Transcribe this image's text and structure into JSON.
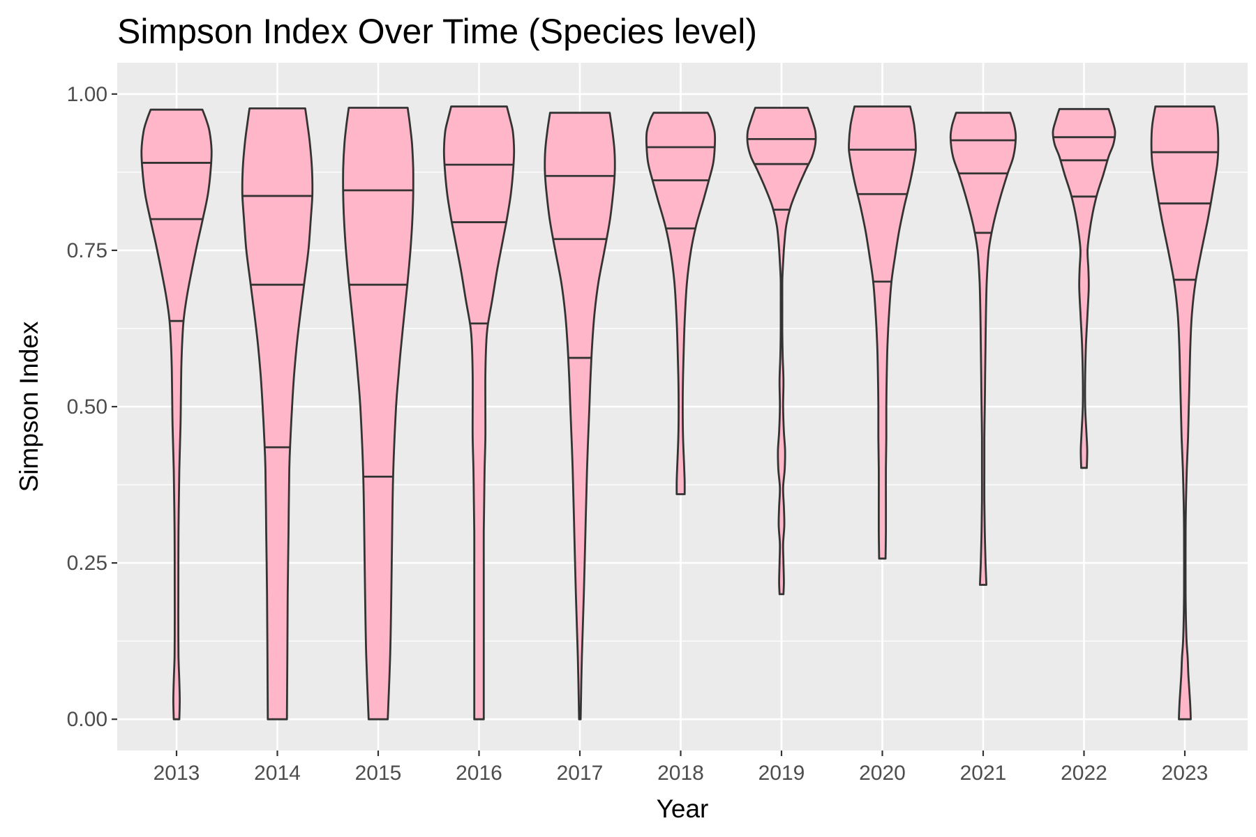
{
  "chart_data": {
    "type": "violin",
    "title": "Simpson Index Over Time (Species level)",
    "xlabel": "Year",
    "ylabel": "Simpson Index",
    "categories": [
      "2013",
      "2014",
      "2015",
      "2016",
      "2017",
      "2018",
      "2019",
      "2020",
      "2021",
      "2022",
      "2023"
    ],
    "yticks": [
      0.0,
      0.25,
      0.5,
      0.75,
      1.0
    ],
    "ytick_labels": [
      "0.00",
      "0.25",
      "0.50",
      "0.75",
      "1.00"
    ],
    "ylim": [
      -0.05,
      1.05
    ],
    "grid": true,
    "fill_color": "#ffb6c8",
    "line_color": "#333333",
    "panel_color": "#ebebeb",
    "grid_color": "#ffffff",
    "series": [
      {
        "category": "2013",
        "min": 0.0,
        "max": 0.975,
        "quantiles": [
          0.637,
          0.8,
          0.89
        ],
        "profile": [
          [
            0.0,
            0.07
          ],
          [
            0.03,
            0.08
          ],
          [
            0.06,
            0.07
          ],
          [
            0.1,
            0.05
          ],
          [
            0.15,
            0.045
          ],
          [
            0.2,
            0.045
          ],
          [
            0.3,
            0.05
          ],
          [
            0.4,
            0.07
          ],
          [
            0.47,
            0.1
          ],
          [
            0.52,
            0.11
          ],
          [
            0.56,
            0.12
          ],
          [
            0.6,
            0.14
          ],
          [
            0.64,
            0.18
          ],
          [
            0.68,
            0.27
          ],
          [
            0.72,
            0.39
          ],
          [
            0.76,
            0.52
          ],
          [
            0.8,
            0.66
          ],
          [
            0.84,
            0.79
          ],
          [
            0.88,
            0.86
          ],
          [
            0.91,
            0.88
          ],
          [
            0.94,
            0.83
          ],
          [
            0.96,
            0.74
          ],
          [
            0.975,
            0.65
          ]
        ]
      },
      {
        "category": "2014",
        "min": 0.0,
        "max": 0.977,
        "quantiles": [
          0.435,
          0.695,
          0.837
        ],
        "profile": [
          [
            0.0,
            0.24
          ],
          [
            0.1,
            0.25
          ],
          [
            0.2,
            0.26
          ],
          [
            0.3,
            0.28
          ],
          [
            0.4,
            0.3
          ],
          [
            0.45,
            0.33
          ],
          [
            0.5,
            0.37
          ],
          [
            0.55,
            0.42
          ],
          [
            0.6,
            0.49
          ],
          [
            0.65,
            0.58
          ],
          [
            0.7,
            0.68
          ],
          [
            0.75,
            0.78
          ],
          [
            0.8,
            0.84
          ],
          [
            0.84,
            0.88
          ],
          [
            0.88,
            0.87
          ],
          [
            0.92,
            0.82
          ],
          [
            0.95,
            0.76
          ],
          [
            0.977,
            0.7
          ]
        ]
      },
      {
        "category": "2015",
        "min": 0.0,
        "max": 0.978,
        "quantiles": [
          0.388,
          0.695,
          0.846
        ],
        "profile": [
          [
            0.0,
            0.24
          ],
          [
            0.1,
            0.3
          ],
          [
            0.2,
            0.33
          ],
          [
            0.3,
            0.35
          ],
          [
            0.4,
            0.38
          ],
          [
            0.5,
            0.45
          ],
          [
            0.55,
            0.51
          ],
          [
            0.6,
            0.58
          ],
          [
            0.65,
            0.66
          ],
          [
            0.7,
            0.74
          ],
          [
            0.75,
            0.81
          ],
          [
            0.8,
            0.86
          ],
          [
            0.84,
            0.88
          ],
          [
            0.88,
            0.88
          ],
          [
            0.92,
            0.85
          ],
          [
            0.95,
            0.8
          ],
          [
            0.978,
            0.74
          ]
        ]
      },
      {
        "category": "2016",
        "min": 0.0,
        "max": 0.98,
        "quantiles": [
          0.633,
          0.795,
          0.887
        ],
        "profile": [
          [
            0.0,
            0.12
          ],
          [
            0.05,
            0.12
          ],
          [
            0.1,
            0.12
          ],
          [
            0.2,
            0.12
          ],
          [
            0.25,
            0.12
          ],
          [
            0.3,
            0.12
          ],
          [
            0.35,
            0.13
          ],
          [
            0.4,
            0.14
          ],
          [
            0.45,
            0.16
          ],
          [
            0.5,
            0.16
          ],
          [
            0.55,
            0.16
          ],
          [
            0.6,
            0.18
          ],
          [
            0.63,
            0.22
          ],
          [
            0.67,
            0.33
          ],
          [
            0.72,
            0.46
          ],
          [
            0.76,
            0.58
          ],
          [
            0.8,
            0.7
          ],
          [
            0.84,
            0.8
          ],
          [
            0.88,
            0.86
          ],
          [
            0.91,
            0.88
          ],
          [
            0.94,
            0.85
          ],
          [
            0.96,
            0.78
          ],
          [
            0.98,
            0.7
          ]
        ]
      },
      {
        "category": "2017",
        "min": 0.0,
        "max": 0.97,
        "quantiles": [
          0.578,
          0.768,
          0.869
        ],
        "profile": [
          [
            0.0,
            0.02
          ],
          [
            0.1,
            0.05
          ],
          [
            0.2,
            0.1
          ],
          [
            0.3,
            0.14
          ],
          [
            0.4,
            0.18
          ],
          [
            0.5,
            0.24
          ],
          [
            0.55,
            0.27
          ],
          [
            0.6,
            0.31
          ],
          [
            0.65,
            0.37
          ],
          [
            0.7,
            0.47
          ],
          [
            0.75,
            0.62
          ],
          [
            0.8,
            0.76
          ],
          [
            0.85,
            0.85
          ],
          [
            0.88,
            0.88
          ],
          [
            0.91,
            0.87
          ],
          [
            0.94,
            0.82
          ],
          [
            0.97,
            0.75
          ]
        ]
      },
      {
        "category": "2018",
        "min": 0.36,
        "max": 0.97,
        "quantiles": [
          0.785,
          0.862,
          0.915
        ],
        "profile": [
          [
            0.36,
            0.1
          ],
          [
            0.38,
            0.1
          ],
          [
            0.4,
            0.09
          ],
          [
            0.45,
            0.06
          ],
          [
            0.5,
            0.05
          ],
          [
            0.55,
            0.06
          ],
          [
            0.6,
            0.08
          ],
          [
            0.65,
            0.11
          ],
          [
            0.7,
            0.16
          ],
          [
            0.75,
            0.26
          ],
          [
            0.79,
            0.39
          ],
          [
            0.83,
            0.57
          ],
          [
            0.86,
            0.7
          ],
          [
            0.89,
            0.82
          ],
          [
            0.92,
            0.86
          ],
          [
            0.94,
            0.85
          ],
          [
            0.96,
            0.76
          ],
          [
            0.97,
            0.68
          ]
        ]
      },
      {
        "category": "2019",
        "min": 0.2,
        "max": 0.978,
        "quantiles": [
          0.815,
          0.888,
          0.928
        ],
        "profile": [
          [
            0.2,
            0.05
          ],
          [
            0.22,
            0.06
          ],
          [
            0.25,
            0.05
          ],
          [
            0.28,
            0.04
          ],
          [
            0.31,
            0.07
          ],
          [
            0.34,
            0.06
          ],
          [
            0.37,
            0.04
          ],
          [
            0.4,
            0.08
          ],
          [
            0.43,
            0.09
          ],
          [
            0.46,
            0.06
          ],
          [
            0.5,
            0.04
          ],
          [
            0.54,
            0.05
          ],
          [
            0.58,
            0.03
          ],
          [
            0.62,
            0.02
          ],
          [
            0.66,
            0.02
          ],
          [
            0.7,
            0.02
          ],
          [
            0.73,
            0.04
          ],
          [
            0.76,
            0.07
          ],
          [
            0.79,
            0.12
          ],
          [
            0.82,
            0.23
          ],
          [
            0.85,
            0.41
          ],
          [
            0.88,
            0.62
          ],
          [
            0.9,
            0.77
          ],
          [
            0.92,
            0.85
          ],
          [
            0.94,
            0.85
          ],
          [
            0.96,
            0.76
          ],
          [
            0.978,
            0.66
          ]
        ]
      },
      {
        "category": "2020",
        "min": 0.257,
        "max": 0.98,
        "quantiles": [
          0.7,
          0.84,
          0.911
        ],
        "profile": [
          [
            0.257,
            0.08
          ],
          [
            0.3,
            0.09
          ],
          [
            0.35,
            0.09
          ],
          [
            0.4,
            0.09
          ],
          [
            0.45,
            0.1
          ],
          [
            0.5,
            0.1
          ],
          [
            0.55,
            0.11
          ],
          [
            0.6,
            0.13
          ],
          [
            0.65,
            0.17
          ],
          [
            0.7,
            0.23
          ],
          [
            0.74,
            0.32
          ],
          [
            0.78,
            0.42
          ],
          [
            0.82,
            0.55
          ],
          [
            0.86,
            0.7
          ],
          [
            0.9,
            0.82
          ],
          [
            0.92,
            0.84
          ],
          [
            0.95,
            0.8
          ],
          [
            0.98,
            0.7
          ]
        ]
      },
      {
        "category": "2021",
        "min": 0.215,
        "max": 0.97,
        "quantiles": [
          0.778,
          0.873,
          0.926
        ],
        "profile": [
          [
            0.215,
            0.08
          ],
          [
            0.25,
            0.06
          ],
          [
            0.3,
            0.04
          ],
          [
            0.35,
            0.03
          ],
          [
            0.4,
            0.03
          ],
          [
            0.45,
            0.03
          ],
          [
            0.5,
            0.04
          ],
          [
            0.55,
            0.05
          ],
          [
            0.6,
            0.06
          ],
          [
            0.65,
            0.07
          ],
          [
            0.7,
            0.09
          ],
          [
            0.75,
            0.14
          ],
          [
            0.79,
            0.25
          ],
          [
            0.83,
            0.41
          ],
          [
            0.87,
            0.6
          ],
          [
            0.9,
            0.76
          ],
          [
            0.93,
            0.82
          ],
          [
            0.95,
            0.78
          ],
          [
            0.97,
            0.68
          ]
        ]
      },
      {
        "category": "2022",
        "min": 0.402,
        "max": 0.976,
        "quantiles": [
          0.836,
          0.894,
          0.931
        ],
        "profile": [
          [
            0.402,
            0.07
          ],
          [
            0.43,
            0.08
          ],
          [
            0.46,
            0.06
          ],
          [
            0.5,
            0.03
          ],
          [
            0.55,
            0.03
          ],
          [
            0.6,
            0.05
          ],
          [
            0.65,
            0.09
          ],
          [
            0.69,
            0.12
          ],
          [
            0.72,
            0.11
          ],
          [
            0.75,
            0.09
          ],
          [
            0.78,
            0.14
          ],
          [
            0.81,
            0.22
          ],
          [
            0.84,
            0.33
          ],
          [
            0.87,
            0.48
          ],
          [
            0.9,
            0.62
          ],
          [
            0.92,
            0.74
          ],
          [
            0.94,
            0.78
          ],
          [
            0.96,
            0.7
          ],
          [
            0.976,
            0.62
          ]
        ]
      },
      {
        "category": "2023",
        "min": 0.0,
        "max": 0.98,
        "quantiles": [
          0.703,
          0.825,
          0.907
        ],
        "profile": [
          [
            0.0,
            0.15
          ],
          [
            0.03,
            0.13
          ],
          [
            0.07,
            0.09
          ],
          [
            0.1,
            0.07
          ],
          [
            0.13,
            0.04
          ],
          [
            0.2,
            0.02
          ],
          [
            0.3,
            0.02
          ],
          [
            0.35,
            0.03
          ],
          [
            0.4,
            0.05
          ],
          [
            0.45,
            0.08
          ],
          [
            0.5,
            0.1
          ],
          [
            0.55,
            0.12
          ],
          [
            0.6,
            0.14
          ],
          [
            0.65,
            0.18
          ],
          [
            0.7,
            0.27
          ],
          [
            0.75,
            0.42
          ],
          [
            0.8,
            0.58
          ],
          [
            0.85,
            0.72
          ],
          [
            0.89,
            0.82
          ],
          [
            0.92,
            0.84
          ],
          [
            0.95,
            0.82
          ],
          [
            0.98,
            0.74
          ]
        ]
      }
    ]
  }
}
